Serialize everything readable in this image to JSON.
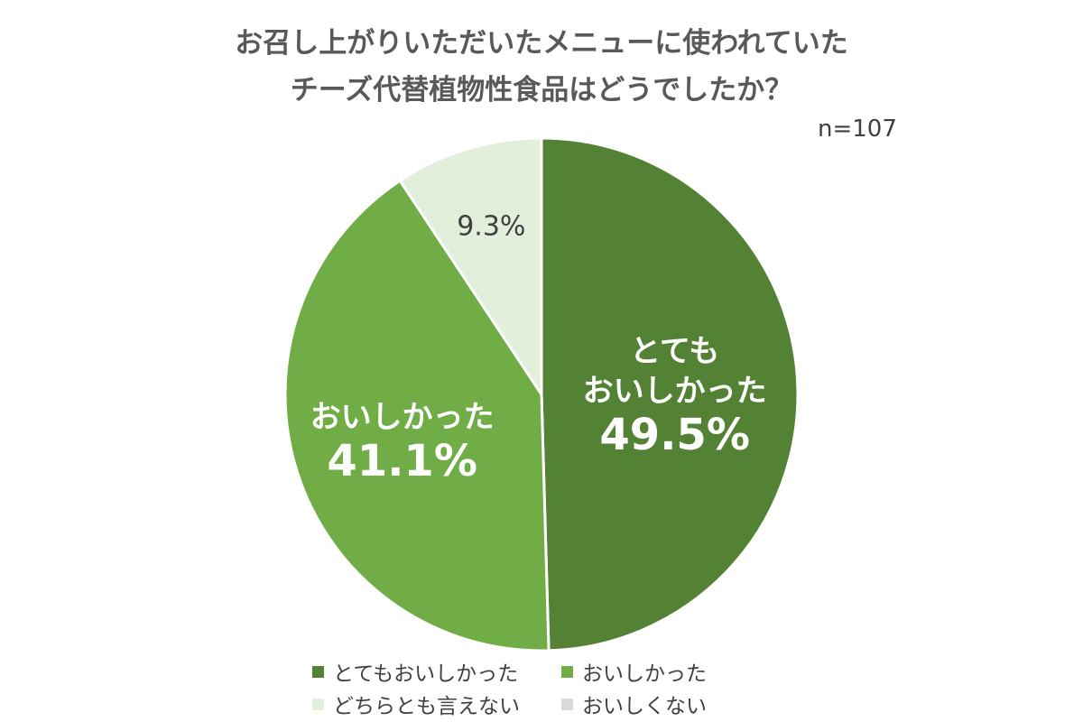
{
  "title": {
    "line1": "お召し上がりいただいたメニューに使われていた",
    "line2": "チーズ代替植物性食品はどうでしたか？"
  },
  "sample_size": "n=107",
  "chart_data": {
    "type": "pie",
    "title": "お召し上がりいただいたメニューに使われていたチーズ代替植物性食品はどうでしたか？",
    "categories": [
      "とてもおいしかった",
      "おいしかった",
      "どちらとも言えない",
      "おいしくない"
    ],
    "values": [
      49.5,
      41.1,
      9.3,
      0.0
    ],
    "unit": "%",
    "colors": [
      "#548235",
      "#70ad47",
      "#e2efda",
      "#d9d9d9"
    ],
    "start_angle": "12 o'clock",
    "direction": "clockwise",
    "data_labels": [
      {
        "lines": [
          "とても",
          "おいしかった"
        ],
        "value": "49.5%",
        "color": "#ffffff"
      },
      {
        "lines": [
          "おいしかった"
        ],
        "value": "41.1%",
        "color": "#ffffff"
      },
      {
        "lines": [],
        "value": "9.3%",
        "color": "#404040"
      },
      {
        "lines": [],
        "value": "",
        "color": "#404040"
      }
    ],
    "legend": {
      "placement": "bottom",
      "entries": [
        "とてもおいしかった",
        "おいしかった",
        "どちらとも言えない",
        "おいしくない"
      ]
    }
  }
}
